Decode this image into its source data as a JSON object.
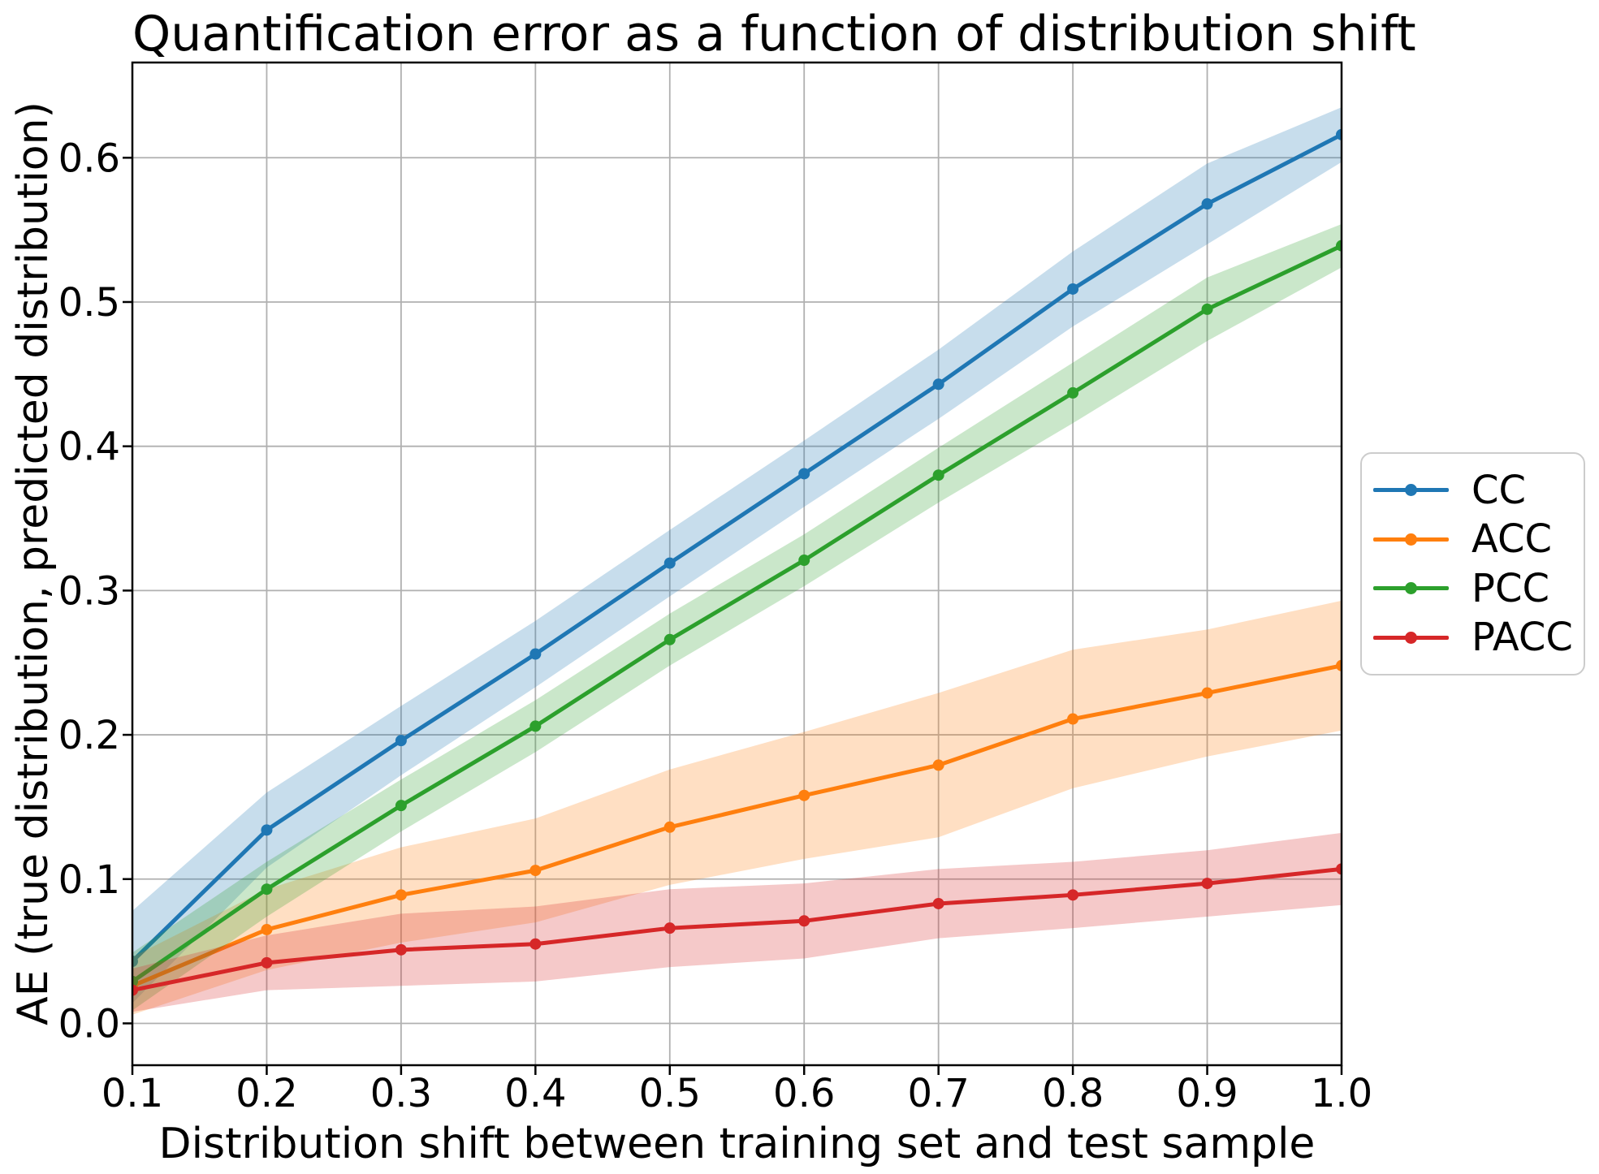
{
  "figure": {
    "background": "#ffffff",
    "spine_color": "#000000",
    "grid_color": "#b0b0b0",
    "legend_border_color": "#cccccc",
    "text_color": "#000000"
  },
  "chart_data": {
    "type": "line",
    "title": "Quantification error as a function of distribution shift",
    "xlabel": "Distribution shift between training set and test sample",
    "ylabel": "AE (true distribution, predicted distribution)",
    "x": [
      0.1,
      0.2,
      0.3,
      0.4,
      0.5,
      0.6,
      0.7,
      0.8,
      0.9,
      1.0
    ],
    "xlim": [
      0.1,
      1.0
    ],
    "ylim": [
      -0.029,
      0.666
    ],
    "xtick_labels": [
      "0.1",
      "0.2",
      "0.3",
      "0.4",
      "0.5",
      "0.6",
      "0.7",
      "0.8",
      "0.9",
      "1.0"
    ],
    "ytick_values": [
      0.0,
      0.1,
      0.2,
      0.3,
      0.4,
      0.5,
      0.6
    ],
    "ytick_labels": [
      "0.0",
      "0.1",
      "0.2",
      "0.3",
      "0.4",
      "0.5",
      "0.6"
    ],
    "grid": true,
    "legend_position": "right of axes, vertically centered",
    "legend_entries": [
      "CC",
      "ACC",
      "PCC",
      "PACC"
    ],
    "band_opacity": 0.25,
    "series": [
      {
        "name": "CC",
        "color": "#1f77b4",
        "values": [
          0.043,
          0.134,
          0.196,
          0.256,
          0.319,
          0.381,
          0.443,
          0.509,
          0.568,
          0.616
        ],
        "band_low": [
          0.014,
          0.108,
          0.172,
          0.233,
          0.296,
          0.358,
          0.419,
          0.483,
          0.54,
          0.597
        ],
        "band_high": [
          0.078,
          0.16,
          0.22,
          0.279,
          0.342,
          0.404,
          0.467,
          0.535,
          0.596,
          0.635
        ]
      },
      {
        "name": "ACC",
        "color": "#ff7f0e",
        "values": [
          0.026,
          0.065,
          0.089,
          0.106,
          0.136,
          0.158,
          0.179,
          0.211,
          0.229,
          0.248
        ],
        "band_low": [
          0.006,
          0.037,
          0.056,
          0.07,
          0.096,
          0.114,
          0.129,
          0.163,
          0.185,
          0.203
        ],
        "band_high": [
          0.046,
          0.093,
          0.122,
          0.142,
          0.176,
          0.202,
          0.229,
          0.259,
          0.273,
          0.293
        ]
      },
      {
        "name": "PCC",
        "color": "#2ca02c",
        "values": [
          0.029,
          0.093,
          0.151,
          0.206,
          0.266,
          0.321,
          0.38,
          0.437,
          0.495,
          0.539
        ],
        "band_low": [
          0.009,
          0.074,
          0.133,
          0.188,
          0.248,
          0.303,
          0.361,
          0.416,
          0.473,
          0.524
        ],
        "band_high": [
          0.049,
          0.112,
          0.169,
          0.224,
          0.284,
          0.339,
          0.399,
          0.458,
          0.517,
          0.554
        ]
      },
      {
        "name": "PACC",
        "color": "#d62728",
        "values": [
          0.023,
          0.042,
          0.051,
          0.055,
          0.066,
          0.071,
          0.083,
          0.089,
          0.097,
          0.107
        ],
        "band_low": [
          0.008,
          0.023,
          0.026,
          0.029,
          0.039,
          0.045,
          0.059,
          0.066,
          0.074,
          0.082
        ],
        "band_high": [
          0.038,
          0.061,
          0.076,
          0.081,
          0.093,
          0.097,
          0.107,
          0.112,
          0.12,
          0.132
        ]
      }
    ]
  }
}
